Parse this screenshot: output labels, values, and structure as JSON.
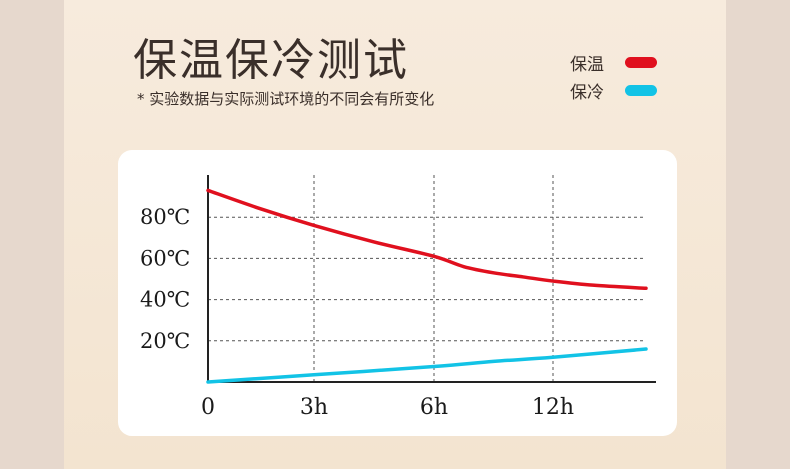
{
  "header": {
    "title": "保温保冷测试",
    "subtitle": "* 实验数据与实际测试环境的不同会有所变化"
  },
  "legend": [
    {
      "label": "保温",
      "color": "#e0101e"
    },
    {
      "label": "保冷",
      "color": "#12c3e6"
    }
  ],
  "chart_data": {
    "type": "line",
    "x_ticks": [
      {
        "value": 0,
        "label": "0"
      },
      {
        "value": 3,
        "label": "3h"
      },
      {
        "value": 6,
        "label": "6h"
      },
      {
        "value": 12,
        "label": "12h"
      }
    ],
    "y_ticks": [
      {
        "value": 20,
        "label": "20℃"
      },
      {
        "value": 40,
        "label": "40℃"
      },
      {
        "value": 60,
        "label": "60℃"
      },
      {
        "value": 80,
        "label": "80℃"
      }
    ],
    "grid": true,
    "series": [
      {
        "name": "保温",
        "color": "#e0101e",
        "points": [
          [
            0,
            93
          ],
          [
            1.5,
            84
          ],
          [
            3,
            76
          ],
          [
            4.5,
            68
          ],
          [
            6,
            61
          ],
          [
            7.5,
            56
          ],
          [
            9,
            53
          ],
          [
            10.5,
            51
          ],
          [
            12,
            49
          ],
          [
            13.5,
            47
          ],
          [
            15.5,
            45.5
          ]
        ]
      },
      {
        "name": "保冷",
        "color": "#12c3e6",
        "points": [
          [
            0,
            0
          ],
          [
            3,
            3.5
          ],
          [
            6,
            7.5
          ],
          [
            9,
            10
          ],
          [
            12,
            12
          ],
          [
            15.5,
            16
          ]
        ]
      }
    ]
  }
}
